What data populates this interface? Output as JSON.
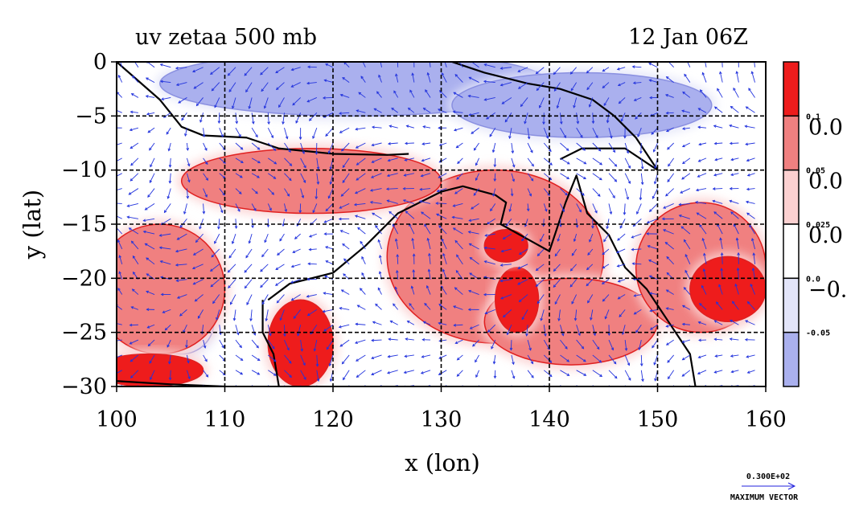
{
  "chart_data": {
    "type": "heatmap",
    "title": "uv zetaa 500 mb",
    "time_label": "12 Jan 06Z",
    "xlabel": "x (lon)",
    "ylabel": "y (lat)",
    "xlim": [
      100,
      160
    ],
    "ylim": [
      -30,
      0
    ],
    "x_ticks": [
      100,
      110,
      120,
      130,
      140,
      150,
      160
    ],
    "y_ticks": [
      0,
      -5,
      -10,
      -15,
      -20,
      -25,
      -30
    ],
    "x_tick_labels": [
      "100",
      "110",
      "120",
      "130",
      "140",
      "150",
      "160"
    ],
    "y_tick_labels": [
      "0",
      "−5",
      "−10",
      "−15",
      "−20",
      "−25",
      "−30"
    ],
    "grid": true,
    "colorbar": {
      "levels": [
        -0.05,
        0.0,
        0.025,
        0.05,
        0.1
      ],
      "level_labels": [
        "-0.05",
        "0.0",
        "0.025",
        "0.05",
        "0.1"
      ],
      "colors": [
        "#aab0ee",
        "#e3e5f9",
        "#ffffff",
        "#fbd0d0",
        "#f08080",
        "#ee1c1c"
      ],
      "clipped_side_labels": [
        "0.0",
        "0.0",
        "0.0",
        "−0."
      ]
    },
    "legend": {
      "vector_magnitude": "0.300E+02",
      "vector_label": "MAXIMUM VECTOR"
    },
    "fields": {
      "positive_blobs": [
        {
          "lon": 104,
          "lat": -21,
          "rx": 6,
          "ry": 6,
          "level": 0.05
        },
        {
          "lon": 117,
          "lat": -26,
          "rx": 3,
          "ry": 4,
          "level": 0.1
        },
        {
          "lon": 103,
          "lat": -28.5,
          "rx": 5,
          "ry": 1.5,
          "level": 0.1
        },
        {
          "lon": 135,
          "lat": -18,
          "rx": 10,
          "ry": 8,
          "level": 0.05
        },
        {
          "lon": 137,
          "lat": -22,
          "rx": 2,
          "ry": 3,
          "level": 0.1
        },
        {
          "lon": 142,
          "lat": -24,
          "rx": 8,
          "ry": 4,
          "level": 0.05
        },
        {
          "lon": 156.5,
          "lat": -21,
          "rx": 3.5,
          "ry": 3,
          "level": 0.1
        },
        {
          "lon": 154,
          "lat": -19,
          "rx": 6,
          "ry": 6,
          "level": 0.05
        },
        {
          "lon": 118,
          "lat": -11,
          "rx": 12,
          "ry": 3,
          "level": 0.05
        },
        {
          "lon": 136,
          "lat": -17,
          "rx": 2,
          "ry": 1.5,
          "level": 0.1
        }
      ],
      "negative_blobs": [
        {
          "lon": 122,
          "lat": -2,
          "rx": 18,
          "ry": 3,
          "level": -0.05
        },
        {
          "lon": 143,
          "lat": -4,
          "rx": 12,
          "ry": 3,
          "level": -0.05
        },
        {
          "lon": 106,
          "lat": -24,
          "rx": 3,
          "ry": 3,
          "level": 0.0
        }
      ]
    },
    "coastlines": [
      [
        [
          100,
          0
        ],
        [
          104,
          -3.5
        ],
        [
          106,
          -6
        ],
        [
          108,
          -6.8
        ],
        [
          112,
          -7
        ],
        [
          115,
          -8
        ],
        [
          120,
          -8.5
        ],
        [
          125,
          -8.6
        ],
        [
          127,
          -8.5
        ]
      ],
      [
        [
          114,
          -22
        ],
        [
          116,
          -20.5
        ],
        [
          120,
          -19.5
        ],
        [
          123,
          -17
        ],
        [
          126,
          -14
        ],
        [
          128,
          -13
        ],
        [
          130,
          -12
        ],
        [
          132,
          -11.5
        ],
        [
          135,
          -12.3
        ],
        [
          136,
          -13
        ],
        [
          135.5,
          -15
        ],
        [
          140,
          -17.5
        ],
        [
          141.5,
          -13
        ],
        [
          142.5,
          -10.5
        ],
        [
          143.5,
          -14
        ],
        [
          145.5,
          -16
        ],
        [
          147,
          -19
        ],
        [
          149,
          -21
        ],
        [
          151,
          -24
        ],
        [
          153,
          -27
        ],
        [
          153.5,
          -30
        ]
      ],
      [
        [
          113.5,
          -22
        ],
        [
          113.5,
          -25
        ],
        [
          114.5,
          -27
        ],
        [
          115,
          -30
        ]
      ],
      [
        [
          131,
          0
        ],
        [
          134,
          -1
        ],
        [
          138,
          -2
        ],
        [
          141,
          -2.5
        ],
        [
          144,
          -3.5
        ],
        [
          146,
          -5
        ],
        [
          148,
          -7
        ],
        [
          150,
          -10
        ],
        [
          147,
          -8
        ],
        [
          143,
          -8
        ],
        [
          141,
          -9
        ]
      ],
      [
        [
          100,
          -29.5
        ],
        [
          105,
          -29.8
        ],
        [
          110,
          -30
        ]
      ]
    ]
  }
}
